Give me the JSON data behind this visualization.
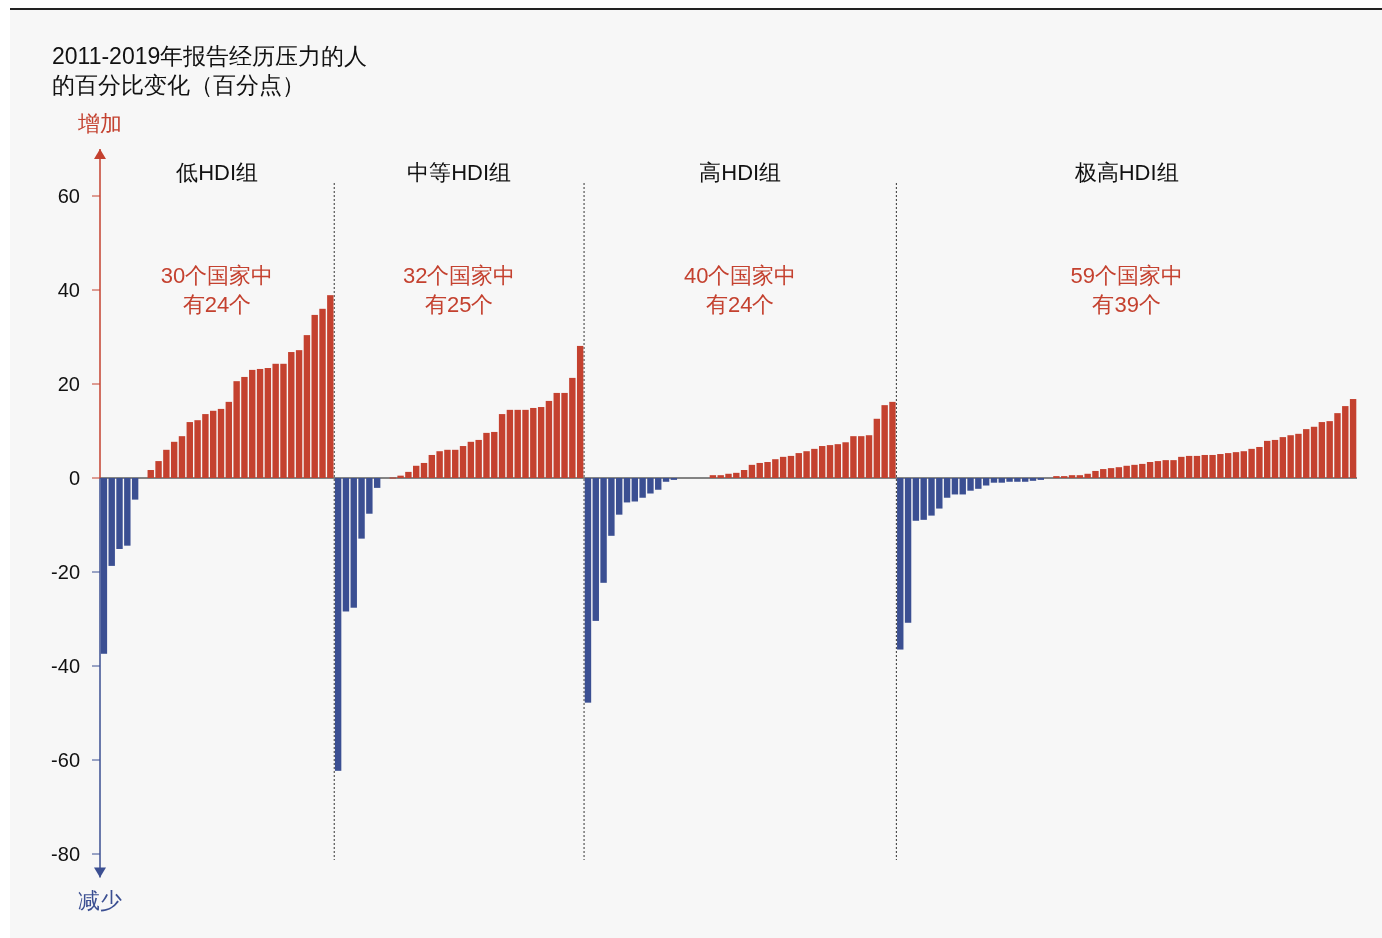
{
  "chart_data": {
    "type": "bar",
    "ylabel": "2011-2019年报告经历压力的人的百分比变化（百分点）",
    "tick_labels": "y",
    "ylim": [
      -85,
      70
    ],
    "yticks": [
      -80,
      -60,
      -40,
      -20,
      0,
      20,
      40,
      60
    ],
    "categories": [
      null,
      null,
      null,
      null,
      null,
      null,
      null,
      null,
      null,
      null,
      null,
      null,
      null,
      null,
      null,
      null,
      null,
      null,
      null,
      null,
      null,
      null,
      null,
      null,
      null,
      null,
      null,
      null,
      null,
      null,
      null,
      null,
      null,
      null,
      null,
      null,
      null,
      null,
      null,
      null,
      null,
      null,
      null,
      null,
      null,
      null,
      null,
      null,
      null,
      null,
      null,
      null,
      null,
      null,
      null,
      null,
      null,
      null,
      null,
      null,
      null,
      null,
      null,
      null,
      null,
      null,
      null,
      null,
      null,
      null,
      null,
      null,
      null,
      null,
      null,
      null,
      null,
      null,
      null,
      null,
      null,
      null,
      null,
      null,
      null,
      null,
      null,
      null,
      null,
      null,
      null,
      null,
      null,
      null,
      null,
      null,
      null,
      null,
      null,
      null,
      null,
      null,
      null,
      null,
      null,
      null,
      null,
      null,
      null,
      null,
      null,
      null,
      null,
      null,
      null,
      null,
      null,
      null,
      null,
      null,
      null,
      null,
      null,
      null,
      null,
      null,
      null,
      null,
      null,
      null,
      null,
      null,
      null,
      null,
      null,
      null,
      null,
      null,
      null,
      null,
      null,
      null,
      null,
      null,
      null,
      null,
      null,
      null,
      null,
      null,
      null,
      null,
      null,
      null,
      null,
      null,
      null,
      null,
      null,
      null,
      null
    ],
    "values": [
      -37.4,
      -18.7,
      -15.1,
      -14.4,
      -4.6,
      null,
      1.7,
      3.6,
      6.0,
      7.7,
      8.9,
      11.9,
      12.3,
      13.6,
      14.3,
      14.7,
      16.2,
      20.6,
      21.5,
      23.0,
      23.2,
      23.4,
      24.3,
      24.3,
      26.8,
      27.2,
      30.4,
      34.7,
      36.0,
      38.9,
      -62.3,
      -28.4,
      -27.6,
      -12.9,
      -7.6,
      -2.1,
      null,
      0.2,
      0.5,
      1.3,
      2.6,
      3.2,
      4.9,
      5.7,
      6.0,
      6.0,
      6.8,
      7.7,
      8.1,
      9.6,
      9.8,
      13.6,
      14.5,
      14.5,
      14.5,
      14.9,
      15.1,
      16.4,
      18.1,
      18.1,
      21.3,
      28.1,
      -47.8,
      -30.4,
      -22.3,
      -12.3,
      -7.8,
      -5.2,
      -5.0,
      -4.2,
      -3.3,
      -2.5,
      -0.8,
      -0.4,
      null,
      null,
      null,
      null,
      0.6,
      0.6,
      0.9,
      1.1,
      1.7,
      2.8,
      3.2,
      3.4,
      4.0,
      4.5,
      4.7,
      5.3,
      5.7,
      6.2,
      6.8,
      7.0,
      7.2,
      7.6,
      8.9,
      8.9,
      9.1,
      12.6,
      15.5,
      16.2,
      -36.5,
      -30.8,
      -9.1,
      -8.9,
      -8.0,
      -6.5,
      -4.2,
      -3.5,
      -3.5,
      -2.7,
      -2.3,
      -1.6,
      -1.0,
      -1.0,
      -0.8,
      -0.8,
      -0.8,
      -0.6,
      -0.4,
      null,
      0.4,
      0.4,
      0.6,
      0.6,
      0.9,
      1.5,
      1.9,
      2.1,
      2.3,
      2.6,
      2.8,
      3.0,
      3.4,
      3.6,
      3.8,
      3.8,
      4.5,
      4.7,
      4.7,
      4.9,
      4.9,
      5.1,
      5.3,
      5.5,
      5.7,
      6.2,
      6.6,
      7.9,
      8.1,
      8.7,
      9.1,
      9.4,
      10.4,
      10.9,
      11.9,
      12.1,
      13.8,
      15.3,
      16.8
    ],
    "colors": [
      "#3b4f92",
      "#3b4f92",
      "#3b4f92",
      "#3b4f92",
      "#3b4f92",
      null,
      "#c4412f",
      "#c4412f",
      "#c4412f",
      "#c4412f",
      "#c4412f",
      "#c4412f",
      "#c4412f",
      "#c4412f",
      "#c4412f",
      "#c4412f",
      "#c4412f",
      "#c4412f",
      "#c4412f",
      "#c4412f",
      "#c4412f",
      "#c4412f",
      "#c4412f",
      "#c4412f",
      "#c4412f",
      "#c4412f",
      "#c4412f",
      "#c4412f",
      "#c4412f",
      "#c4412f",
      "#3b4f92",
      "#3b4f92",
      "#3b4f92",
      "#3b4f92",
      "#3b4f92",
      "#3b4f92",
      null,
      "#c4412f",
      "#c4412f",
      "#c4412f",
      "#c4412f",
      "#c4412f",
      "#c4412f",
      "#c4412f",
      "#c4412f",
      "#c4412f",
      "#c4412f",
      "#c4412f",
      "#c4412f",
      "#c4412f",
      "#c4412f",
      "#c4412f",
      "#c4412f",
      "#c4412f",
      "#c4412f",
      "#c4412f",
      "#c4412f",
      "#c4412f",
      "#c4412f",
      "#c4412f",
      "#c4412f",
      "#c4412f",
      "#3b4f92",
      "#3b4f92",
      "#3b4f92",
      "#3b4f92",
      "#3b4f92",
      "#3b4f92",
      "#3b4f92",
      "#3b4f92",
      "#3b4f92",
      "#3b4f92",
      "#3b4f92",
      "#3b4f92",
      null,
      null,
      null,
      null,
      "#c4412f",
      "#c4412f",
      "#c4412f",
      "#c4412f",
      "#c4412f",
      "#c4412f",
      "#c4412f",
      "#c4412f",
      "#c4412f",
      "#c4412f",
      "#c4412f",
      "#c4412f",
      "#c4412f",
      "#c4412f",
      "#c4412f",
      "#c4412f",
      "#c4412f",
      "#c4412f",
      "#c4412f",
      "#c4412f",
      "#c4412f",
      "#c4412f",
      "#c4412f",
      "#c4412f",
      "#3b4f92",
      "#3b4f92",
      "#3b4f92",
      "#3b4f92",
      "#3b4f92",
      "#3b4f92",
      "#3b4f92",
      "#3b4f92",
      "#3b4f92",
      "#3b4f92",
      "#3b4f92",
      "#3b4f92",
      "#3b4f92",
      "#3b4f92",
      "#3b4f92",
      "#3b4f92",
      "#3b4f92",
      "#3b4f92",
      "#3b4f92",
      null,
      "#c4412f",
      "#c4412f",
      "#c4412f",
      "#c4412f",
      "#c4412f",
      "#c4412f",
      "#c4412f",
      "#c4412f",
      "#c4412f",
      "#c4412f",
      "#c4412f",
      "#c4412f",
      "#c4412f",
      "#c4412f",
      "#c4412f",
      "#c4412f",
      "#c4412f",
      "#c4412f",
      "#c4412f",
      "#c4412f",
      "#c4412f",
      "#c4412f",
      "#c4412f",
      "#c4412f",
      "#c4412f",
      "#c4412f",
      "#c4412f",
      "#c4412f",
      "#c4412f",
      "#c4412f",
      "#c4412f",
      "#c4412f",
      "#c4412f",
      "#c4412f",
      "#c4412f",
      "#c4412f",
      "#c4412f",
      "#c4412f",
      "#c4412f"
    ],
    "annotations": [
      "低HDI组",
      "30个国家中有24个",
      "中等HDI组",
      "32个国家中有25个",
      "高HDI组",
      "40个国家中有24个",
      "极高HDI组",
      "59个国家中有39个",
      "增加",
      "减少"
    ]
  }
}
